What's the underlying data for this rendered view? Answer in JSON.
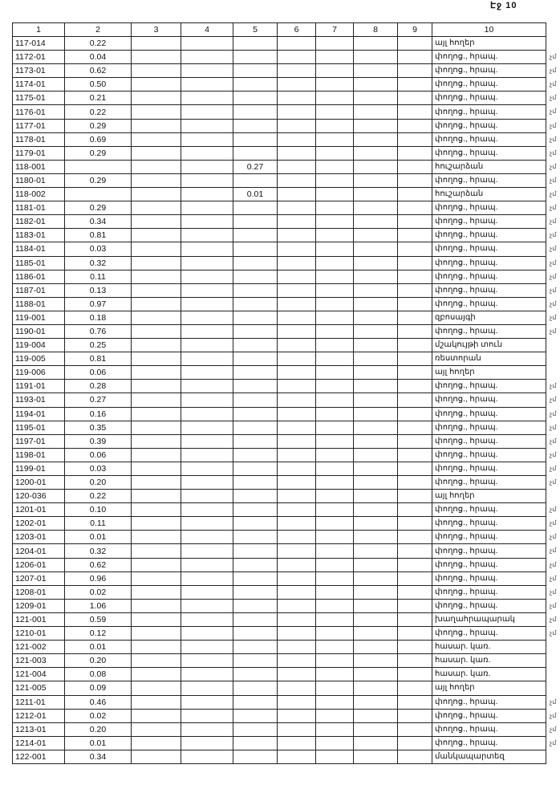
{
  "page_label": "Էջ 10",
  "columns": [
    "1",
    "2",
    "3",
    "4",
    "5",
    "6",
    "7",
    "8",
    "9",
    "10"
  ],
  "row_mark": "չմ",
  "rows": [
    [
      "117-014",
      "0.22",
      "",
      "այլ հողեր",
      false
    ],
    [
      "1172-01",
      "0.04",
      "",
      "փողոց., հրապ.",
      true
    ],
    [
      "1173-01",
      "0.62",
      "",
      "փողոց., հրապ.",
      true
    ],
    [
      "1174-01",
      "0.50",
      "",
      "փողոց., հրապ.",
      true
    ],
    [
      "1175-01",
      "0.21",
      "",
      "փողոց., հրապ.",
      true
    ],
    [
      "1176-01",
      "0.22",
      "",
      "փողոց., հրապ.",
      true
    ],
    [
      "1177-01",
      "0.29",
      "",
      "փողոց., հրապ.",
      true
    ],
    [
      "1178-01",
      "0.69",
      "",
      "փողոց., հրապ.",
      true
    ],
    [
      "1179-01",
      "0.29",
      "",
      "փողոց., հրապ.",
      true
    ],
    [
      "118-001",
      "",
      "0.27",
      "հուշարձան",
      true
    ],
    [
      "1180-01",
      "0.29",
      "",
      "փողոց., հրապ.",
      true
    ],
    [
      "118-002",
      "",
      "0.01",
      "հուշարձան",
      true
    ],
    [
      "1181-01",
      "0.29",
      "",
      "փողոց., հրապ.",
      true
    ],
    [
      "1182-01",
      "0.34",
      "",
      "փողոց., հրապ.",
      true
    ],
    [
      "1183-01",
      "0.81",
      "",
      "փողոց., հրապ.",
      true
    ],
    [
      "1184-01",
      "0.03",
      "",
      "փողոց., հրապ.",
      true
    ],
    [
      "1185-01",
      "0.32",
      "",
      "փողոց., հրապ.",
      true
    ],
    [
      "1186-01",
      "0.11",
      "",
      "փողոց., հրապ.",
      true
    ],
    [
      "1187-01",
      "0.13",
      "",
      "փողոց., հրապ.",
      true
    ],
    [
      "1188-01",
      "0.97",
      "",
      "փողոց., հրապ.",
      true
    ],
    [
      "119-001",
      "0.18",
      "",
      "զբոսայգի",
      true
    ],
    [
      "1190-01",
      "0.76",
      "",
      "փողոց., հրապ.",
      true
    ],
    [
      "119-004",
      "0.25",
      "",
      "մշակույթի տուն",
      false
    ],
    [
      "119-005",
      "0.81",
      "",
      "ռեստորան",
      false
    ],
    [
      "119-006",
      "0.06",
      "",
      "այլ հողեր",
      false
    ],
    [
      "1191-01",
      "0.28",
      "",
      "փողոց., հրապ.",
      true
    ],
    [
      "1193-01",
      "0.27",
      "",
      "փողոց., հրապ.",
      true
    ],
    [
      "1194-01",
      "0.16",
      "",
      "փողոց., հրապ.",
      true
    ],
    [
      "1195-01",
      "0.35",
      "",
      "փողոց., հրապ.",
      true
    ],
    [
      "1197-01",
      "0.39",
      "",
      "փողոց., հրապ.",
      true
    ],
    [
      "1198-01",
      "0.06",
      "",
      "փողոց., հրապ.",
      true
    ],
    [
      "1199-01",
      "0.03",
      "",
      "փողոց., հրապ.",
      true
    ],
    [
      "1200-01",
      "0.20",
      "",
      "փողոց., հրապ.",
      true
    ],
    [
      "120-036",
      "0.22",
      "",
      "այլ հողեր",
      false
    ],
    [
      "1201-01",
      "0.10",
      "",
      "փողոց., հրապ.",
      true
    ],
    [
      "1202-01",
      "0.11",
      "",
      "փողոց., հրապ.",
      true
    ],
    [
      "1203-01",
      "0.01",
      "",
      "փողոց., հրապ.",
      true
    ],
    [
      "1204-01",
      "0.32",
      "",
      "փողոց., հրապ.",
      true
    ],
    [
      "1206-01",
      "0.62",
      "",
      "փողոց., հրապ.",
      true
    ],
    [
      "1207-01",
      "0.96",
      "",
      "փողոց., հրապ.",
      true
    ],
    [
      "1208-01",
      "0.02",
      "",
      "փողոց., հրապ.",
      true
    ],
    [
      "1209-01",
      "1.06",
      "",
      "փողոց., հրապ.",
      true
    ],
    [
      "121-001",
      "0.59",
      "",
      "խաղահրապարակ",
      true
    ],
    [
      "1210-01",
      "0.12",
      "",
      "փողոց., հրապ.",
      true
    ],
    [
      "121-002",
      "0.01",
      "",
      "հասար. կառ.",
      false
    ],
    [
      "121-003",
      "0.20",
      "",
      "հասար. կառ.",
      false
    ],
    [
      "121-004",
      "0.08",
      "",
      "հասար. կառ.",
      false
    ],
    [
      "121-005",
      "0.09",
      "",
      "այլ հողեր",
      false
    ],
    [
      "1211-01",
      "0.46",
      "",
      "փողոց., հրապ.",
      true
    ],
    [
      "1212-01",
      "0.02",
      "",
      "փողոց., հրապ.",
      true
    ],
    [
      "1213-01",
      "0.20",
      "",
      "փողոց., հրապ.",
      true
    ],
    [
      "1214-01",
      "0.01",
      "",
      "փողոց., հրապ.",
      true
    ],
    [
      "122-001",
      "0.34",
      "",
      "մանկապարտեզ",
      false
    ]
  ]
}
